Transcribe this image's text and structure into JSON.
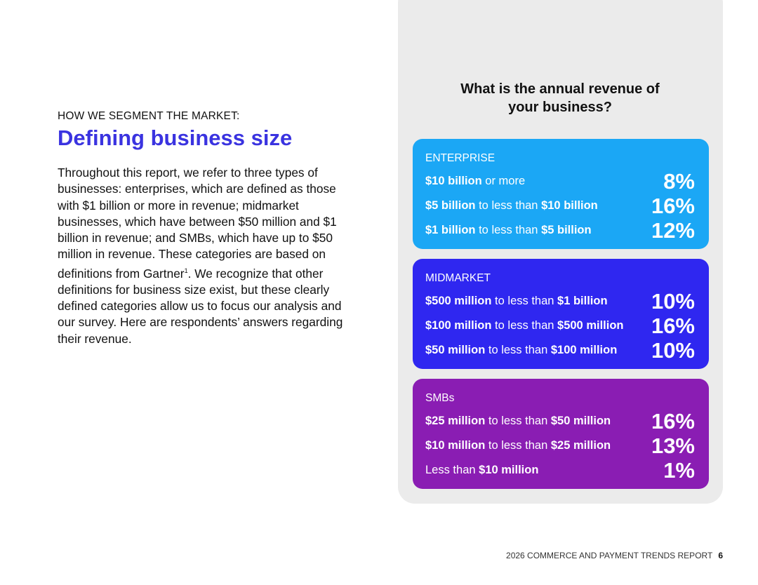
{
  "left": {
    "eyebrow": "HOW WE SEGMENT THE MARKET:",
    "heading": "Defining business size",
    "body": [
      "Throughout this report, we refer to three types of businesses: enterprises, which are defined as those with $1 billion or more in revenue; midmarket businesses, which have between $50 million and $1 billion in revenue; and SMBs, which have up to $50 million in revenue. These categories are based on definitions from Gartner",
      "1",
      ". We recognize that other definitions for business size exist, but these clearly defined categories allow us to focus our analysis and our survey. Here are respondents’ answers regarding their revenue."
    ]
  },
  "panel": {
    "question": "What is the annual revenue of your business?",
    "segments": [
      {
        "name": "ENTERPRISE",
        "color": "#1ba7f5",
        "rows": [
          {
            "parts": [
              {
                "text": "$10 billion",
                "bold": true
              },
              {
                "text": " or more",
                "bold": false
              }
            ],
            "value": "8%"
          },
          {
            "parts": [
              {
                "text": "$5 billion",
                "bold": true
              },
              {
                "text": " to less than ",
                "bold": false
              },
              {
                "text": "$10 billion",
                "bold": true
              }
            ],
            "value": "16%"
          },
          {
            "parts": [
              {
                "text": "$1 billion",
                "bold": true
              },
              {
                "text": " to less than ",
                "bold": false
              },
              {
                "text": "$5 billion",
                "bold": true
              }
            ],
            "value": "12%"
          }
        ]
      },
      {
        "name": "MIDMARKET",
        "color": "#2f27f0",
        "rows": [
          {
            "parts": [
              {
                "text": "$500 million",
                "bold": true
              },
              {
                "text": " to less than ",
                "bold": false
              },
              {
                "text": "$1 billion",
                "bold": true
              }
            ],
            "value": "10%"
          },
          {
            "parts": [
              {
                "text": "$100 million",
                "bold": true
              },
              {
                "text": " to less than ",
                "bold": false
              },
              {
                "text": "$500 million",
                "bold": true
              }
            ],
            "value": "16%"
          },
          {
            "parts": [
              {
                "text": "$50 million",
                "bold": true
              },
              {
                "text": " to less than ",
                "bold": false
              },
              {
                "text": "$100 million",
                "bold": true
              }
            ],
            "value": "10%"
          }
        ]
      },
      {
        "name": "SMBs",
        "color": "#8a1db3",
        "rows": [
          {
            "parts": [
              {
                "text": "$25 million",
                "bold": true
              },
              {
                "text": " to less than ",
                "bold": false
              },
              {
                "text": "$50 million",
                "bold": true
              }
            ],
            "value": "16%"
          },
          {
            "parts": [
              {
                "text": "$10 million",
                "bold": true
              },
              {
                "text": " to less than ",
                "bold": false
              },
              {
                "text": "$25 million",
                "bold": true
              }
            ],
            "value": "13%"
          },
          {
            "parts": [
              {
                "text": "Less than ",
                "bold": false
              },
              {
                "text": "$10 million",
                "bold": true
              }
            ],
            "value": "1%"
          }
        ]
      }
    ]
  },
  "footer": {
    "report": "2026 COMMERCE AND PAYMENT TRENDS REPORT",
    "page": "6"
  }
}
